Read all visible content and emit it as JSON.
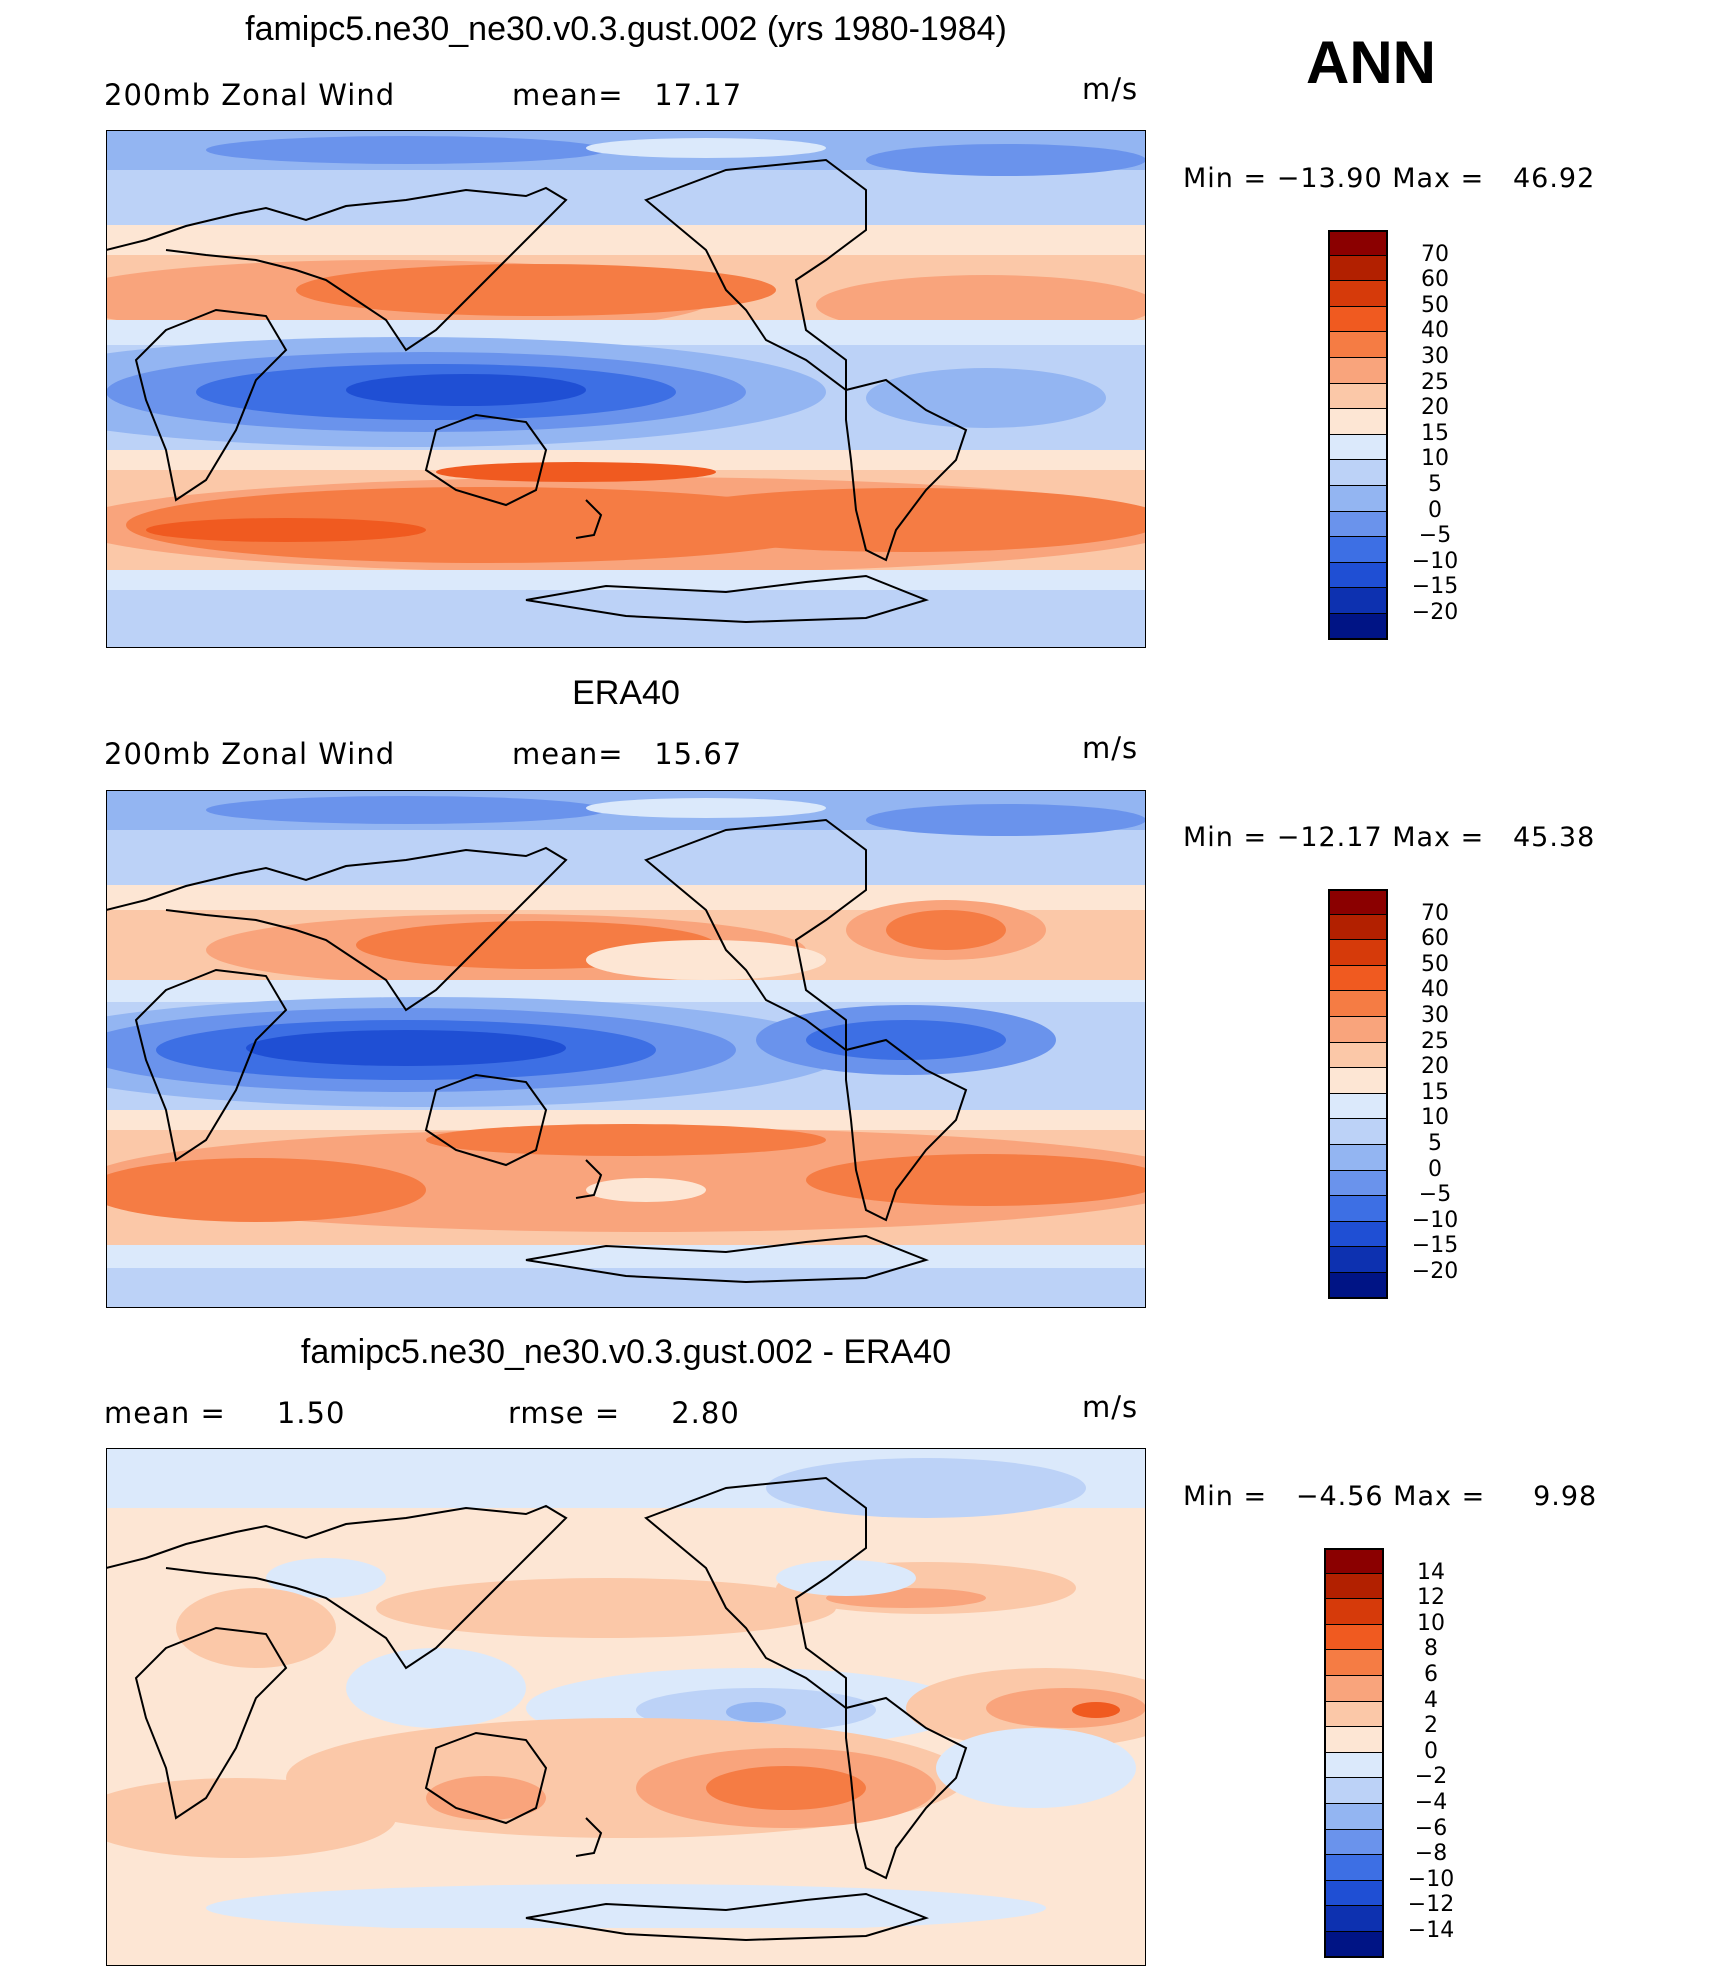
{
  "season": "ANN",
  "panels": [
    {
      "title": "famipc5.ne30_ne30.v0.3.gust.002 (yrs 1980-1984)",
      "left_label": "200mb Zonal Wind",
      "mid_label": "mean=   17.17",
      "units": "m/s",
      "minmax": "Min = −13.90 Max =   46.92",
      "colorbar": {
        "labels": [
          "70",
          "60",
          "50",
          "40",
          "30",
          "25",
          "20",
          "15",
          "10",
          "5",
          "0",
          "−5",
          "−10",
          "−15",
          "−20"
        ],
        "colors": [
          "#8b0000",
          "#b22000",
          "#d63a0a",
          "#f05a20",
          "#f57c44",
          "#f9a47c",
          "#fbc8a8",
          "#fde6d4",
          "#dbe9fb",
          "#bcd2f7",
          "#93b5f2",
          "#6a93ec",
          "#3d6fe4",
          "#1f4fd4",
          "#0d31b0",
          "#001485"
        ]
      },
      "map_note": "model zonal wind field"
    },
    {
      "title": "ERA40",
      "left_label": "200mb Zonal Wind",
      "mid_label": "mean=   15.67",
      "units": "m/s",
      "minmax": "Min = −12.17 Max =   45.38",
      "colorbar": {
        "labels": [
          "70",
          "60",
          "50",
          "40",
          "30",
          "25",
          "20",
          "15",
          "10",
          "5",
          "0",
          "−5",
          "−10",
          "−15",
          "−20"
        ],
        "colors": [
          "#8b0000",
          "#b22000",
          "#d63a0a",
          "#f05a20",
          "#f57c44",
          "#f9a47c",
          "#fbc8a8",
          "#fde6d4",
          "#dbe9fb",
          "#bcd2f7",
          "#93b5f2",
          "#6a93ec",
          "#3d6fe4",
          "#1f4fd4",
          "#0d31b0",
          "#001485"
        ]
      }
    },
    {
      "title": "famipc5.ne30_ne30.v0.3.gust.002 - ERA40",
      "left_label": "mean =     1.50",
      "mid_label": "rmse =     2.80",
      "units": "m/s",
      "minmax": "Min =   −4.56 Max =     9.98",
      "colorbar": {
        "labels": [
          "14",
          "12",
          "10",
          "8",
          "6",
          "4",
          "2",
          "0",
          "−2",
          "−4",
          "−6",
          "−8",
          "−10",
          "−12",
          "−14"
        ],
        "colors": [
          "#8b0000",
          "#b22000",
          "#d63a0a",
          "#f05a20",
          "#f57c44",
          "#f9a47c",
          "#fbc8a8",
          "#fde6d4",
          "#dbe9fb",
          "#bcd2f7",
          "#93b5f2",
          "#6a93ec",
          "#3d6fe4",
          "#1f4fd4",
          "#0d31b0",
          "#001485"
        ]
      }
    }
  ]
}
